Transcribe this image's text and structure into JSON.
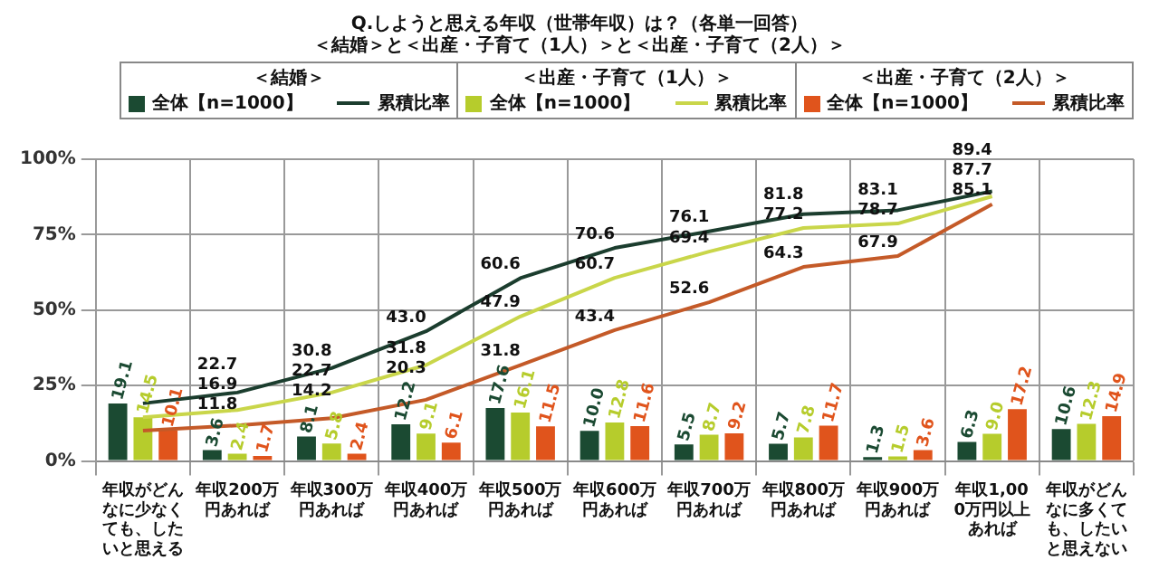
{
  "chart_data": {
    "type": "bar",
    "title": "Q.しようと思える年収（世帯年収）は？（各単一回答）",
    "subtitle": "＜結婚＞と＜出産・子育て（1人）＞と＜出産・子育て（2人）＞",
    "annotations": [
      "＜結婚＞",
      "＜出産・子育て（1人）＞",
      "＜出産・子育て（2人）＞"
    ],
    "categories": [
      "年収がどんなに少なくても、したいと思える",
      "年収200万円あれば",
      "年収300万円あれば",
      "年収400万円あれば",
      "年収500万円あれば",
      "年収600万円あれば",
      "年収700万円あれば",
      "年収800万円あれば",
      "年収900万円あれば",
      "年収1,000万円以上あれば",
      "年収がどんなに多くても、したいと思えない"
    ],
    "series": [
      {
        "name": "全体【n=1000】",
        "color": "#1b4a32",
        "values": [
          19.1,
          3.6,
          8.1,
          12.2,
          17.6,
          10.0,
          5.5,
          5.7,
          1.3,
          6.3,
          10.6
        ],
        "value_labels": [
          "19.1",
          "3.6",
          "8.1",
          "12.2",
          "17.6",
          "10.0",
          "5.5",
          "5.7",
          "1.3",
          "6.3",
          "10.6"
        ]
      },
      {
        "type": "line",
        "name": "累積比率",
        "color": "#1b3d2e",
        "values": [
          19.1,
          22.7,
          30.8,
          43.0,
          60.6,
          70.6,
          76.1,
          81.8,
          83.1,
          89.4,
          null
        ],
        "value_labels": [
          null,
          "22.7",
          "30.8",
          "43.0",
          "60.6",
          "70.6",
          "76.1",
          "81.8",
          "83.1",
          "89.4",
          null
        ]
      },
      {
        "name": "全体【n=1000】",
        "color": "#b6cc2c",
        "values": [
          14.5,
          2.4,
          5.8,
          9.1,
          16.1,
          12.8,
          8.7,
          7.8,
          1.5,
          9.0,
          12.3
        ],
        "value_labels": [
          "14.5",
          "2.4",
          "5.8",
          "9.1",
          "16.1",
          "12.8",
          "8.7",
          "7.8",
          "1.5",
          "9.0",
          "12.3"
        ]
      },
      {
        "type": "line",
        "name": "累積比率",
        "color": "#c9d64a",
        "values": [
          14.5,
          16.9,
          22.7,
          31.8,
          47.9,
          60.7,
          69.4,
          77.2,
          78.7,
          87.7,
          null
        ],
        "value_labels": [
          null,
          "16.9",
          "22.7",
          "31.8",
          "47.9",
          "60.7",
          "69.4",
          "77.2",
          "78.7",
          "87.7",
          null
        ]
      },
      {
        "name": "全体【n=1000】",
        "color": "#e0541c",
        "values": [
          10.1,
          1.7,
          2.4,
          6.1,
          11.5,
          11.6,
          9.2,
          11.7,
          3.6,
          17.2,
          14.9
        ],
        "value_labels": [
          "10.1",
          "1.7",
          "2.4",
          "6.1",
          "11.5",
          "11.6",
          "9.2",
          "11.7",
          "3.6",
          "17.2",
          "14.9"
        ]
      },
      {
        "type": "line",
        "name": "累積比率",
        "color": "#c45a28",
        "values": [
          10.1,
          11.8,
          14.2,
          20.3,
          31.8,
          43.4,
          52.6,
          64.3,
          67.9,
          85.1,
          null
        ],
        "value_labels": [
          null,
          "11.8",
          "14.2",
          "20.3",
          "31.8",
          "43.4",
          "52.6",
          "64.3",
          "67.9",
          "85.1",
          null
        ]
      }
    ],
    "ylim": [
      0,
      100
    ],
    "yticks": [
      {
        "value": 0,
        "label": "0%"
      },
      {
        "value": 25,
        "label": "25%"
      },
      {
        "value": 50,
        "label": "50%"
      },
      {
        "value": 75,
        "label": "75%"
      },
      {
        "value": 100,
        "label": "100%"
      }
    ],
    "grid": "y",
    "legend": "top",
    "marker": "none",
    "line_style": "solid"
  }
}
